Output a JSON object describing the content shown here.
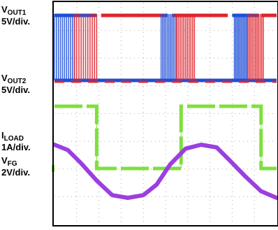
{
  "labels": {
    "vout1": {
      "main": "V",
      "sub": "OUT1",
      "scale": "5V/div."
    },
    "vout2": {
      "main": "V",
      "sub": "OUT2",
      "scale": "5V/div."
    },
    "iload": {
      "main": "I",
      "sub": "LOAD",
      "scale": "1A/div."
    },
    "vfg": {
      "main": "V",
      "sub": "FG",
      "scale": "2V/div."
    }
  },
  "colors": {
    "vout_blue": "#1f4fd6",
    "vout_red": "#e0242c",
    "fg_green": "#7ee03c",
    "iload_purple": "#9b3fe0",
    "grid": "#9a9a9a",
    "frame": "#000000"
  },
  "chart_data": {
    "type": "line",
    "title": "",
    "grid": true,
    "divisions": {
      "x": 10,
      "y": 8
    },
    "note": "Oscilloscope capture: two bridge outputs switching alternately, FG logic signal and sinusoidal load current",
    "series": [
      {
        "name": "VOUT1",
        "scale": "5V/div.",
        "x": [
          0,
          2,
          4,
          5,
          6,
          7,
          9,
          10
        ],
        "y": [
          1,
          1,
          1,
          1,
          0,
          0,
          1,
          1
        ]
      },
      {
        "name": "VOUT2",
        "scale": "5V/div.",
        "x": [
          0,
          2,
          4,
          5,
          6,
          7,
          9,
          10
        ],
        "y": [
          0,
          0,
          0,
          1,
          1,
          1,
          0,
          0
        ]
      },
      {
        "name": "VFG",
        "scale": "2V/div.",
        "x": [
          0,
          1.9,
          5.7,
          9.3,
          10
        ],
        "y": [
          1,
          0,
          1,
          0,
          1
        ]
      },
      {
        "name": "ILOAD",
        "scale": "1A/div.",
        "x": [
          0,
          0.6,
          1.2,
          1.9,
          2.6,
          3.3,
          4.0,
          4.6,
          5.2,
          5.9,
          6.6,
          7.3,
          7.9,
          8.6,
          9.3,
          10
        ],
        "y": [
          1.0,
          0.8,
          0.3,
          -0.35,
          -0.9,
          -1.0,
          -0.9,
          -0.5,
          0.25,
          0.85,
          1.0,
          0.9,
          0.4,
          -0.2,
          -0.75,
          -1.0
        ]
      }
    ]
  }
}
